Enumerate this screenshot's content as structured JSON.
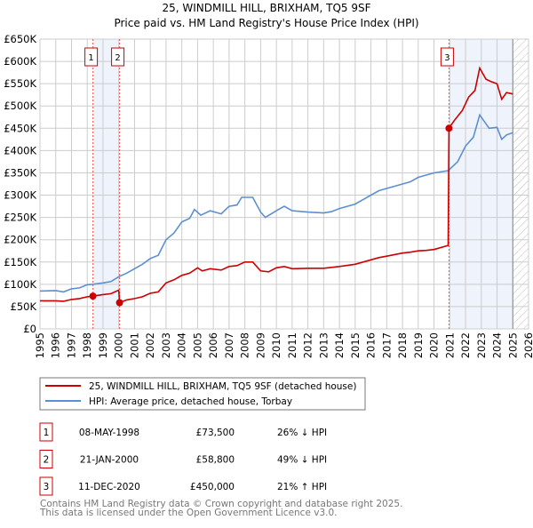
{
  "chart_data": {
    "type": "line",
    "title": "25, WINDMILL HILL, BRIXHAM, TQ5 9SF",
    "subtitle": "Price paid vs. HM Land Registry's House Price Index (HPI)",
    "xlim": [
      1995,
      2026
    ],
    "ylim": [
      0,
      650000
    ],
    "x_ticks": [
      "1995",
      "1996",
      "1997",
      "1998",
      "1999",
      "2000",
      "2001",
      "2002",
      "2003",
      "2004",
      "2005",
      "2006",
      "2007",
      "2008",
      "2009",
      "2010",
      "2011",
      "2012",
      "2013",
      "2014",
      "2015",
      "2016",
      "2017",
      "2018",
      "2019",
      "2020",
      "2021",
      "2022",
      "2023",
      "2024",
      "2025",
      "2026"
    ],
    "y_ticks": [
      {
        "value": 0,
        "label": "£0"
      },
      {
        "value": 50000,
        "label": "£50K"
      },
      {
        "value": 100000,
        "label": "£100K"
      },
      {
        "value": 150000,
        "label": "£150K"
      },
      {
        "value": 200000,
        "label": "£200K"
      },
      {
        "value": 250000,
        "label": "£250K"
      },
      {
        "value": 300000,
        "label": "£300K"
      },
      {
        "value": 350000,
        "label": "£350K"
      },
      {
        "value": 400000,
        "label": "£400K"
      },
      {
        "value": 450000,
        "label": "£450K"
      },
      {
        "value": 500000,
        "label": "£500K"
      },
      {
        "value": 550000,
        "label": "£550K"
      },
      {
        "value": 600000,
        "label": "£600K"
      },
      {
        "value": 650000,
        "label": "£650K"
      }
    ],
    "grid": true,
    "series": [
      {
        "name": "25, WINDMILL HILL, BRIXHAM, TQ5 9SF (detached house)",
        "color": "#cc0000",
        "x": [
          1995,
          1996,
          1996.5,
          1997,
          1997.5,
          1998,
          1998.36,
          1999,
          1999.5,
          2000.0,
          2000.05,
          2000.5,
          2001,
          2001.5,
          2002,
          2002.5,
          2003,
          2003.5,
          2004,
          2004.5,
          2005,
          2005.3,
          2005.8,
          2006.5,
          2007,
          2007.5,
          2008,
          2008.5,
          2009,
          2009.5,
          2010,
          2010.5,
          2011,
          2012,
          2013,
          2014,
          2015,
          2015.5,
          2016,
          2016.5,
          2017,
          2018,
          2018.5,
          2019,
          2019.5,
          2020,
          2020.9,
          2020.95,
          2021.3,
          2021.8,
          2022.2,
          2022.6,
          2022.9,
          2023.3,
          2023.6,
          2024,
          2024.3,
          2024.6,
          2025
        ],
        "values": [
          63000,
          63000,
          62000,
          66000,
          68000,
          72000,
          73500,
          77000,
          79000,
          87000,
          58800,
          65000,
          68000,
          72000,
          80000,
          83000,
          103000,
          110000,
          120000,
          125000,
          137000,
          130000,
          135000,
          132000,
          140000,
          142000,
          150000,
          150000,
          130000,
          128000,
          137000,
          140000,
          135000,
          136000,
          136000,
          140000,
          145000,
          150000,
          155000,
          160000,
          163000,
          170000,
          172000,
          175000,
          176000,
          178000,
          187000,
          450000,
          468000,
          490000,
          520000,
          535000,
          585000,
          560000,
          555000,
          550000,
          515000,
          530000,
          527000
        ]
      },
      {
        "name": "HPI: Average price, detached house, Torbay",
        "color": "#5b8fd0",
        "x": [
          1995,
          1996,
          1996.5,
          1997,
          1997.5,
          1998,
          1998.36,
          1999,
          1999.5,
          2000,
          2000.5,
          2001,
          2001.5,
          2002,
          2002.5,
          2003,
          2003.5,
          2004,
          2004.5,
          2004.8,
          2005.2,
          2005.8,
          2006.5,
          2007,
          2007.5,
          2007.8,
          2008.5,
          2009,
          2009.3,
          2010,
          2010.5,
          2011,
          2012,
          2013,
          2013.5,
          2014,
          2015,
          2015.5,
          2016,
          2016.5,
          2017,
          2018,
          2018.5,
          2019,
          2019.5,
          2020,
          2020.9,
          2021.5,
          2022,
          2022.5,
          2022.9,
          2023.5,
          2024,
          2024.3,
          2024.6,
          2025
        ],
        "values": [
          85000,
          86000,
          83000,
          90000,
          92000,
          99000,
          100000,
          103000,
          106000,
          117000,
          125000,
          135000,
          145000,
          158000,
          165000,
          200000,
          215000,
          240000,
          248000,
          268000,
          255000,
          265000,
          258000,
          275000,
          278000,
          295000,
          295000,
          262000,
          250000,
          265000,
          275000,
          265000,
          262000,
          260000,
          263000,
          270000,
          280000,
          290000,
          300000,
          310000,
          315000,
          325000,
          330000,
          340000,
          345000,
          350000,
          355000,
          375000,
          410000,
          430000,
          480000,
          450000,
          452000,
          425000,
          435000,
          440000
        ]
      }
    ],
    "sales": [
      {
        "id": "1",
        "x": 1998.36,
        "value": 73500
      },
      {
        "id": "2",
        "x": 2000.05,
        "value": 58800
      },
      {
        "id": "3",
        "x": 2020.95,
        "value": 450000
      }
    ],
    "shaded_ranges": [
      [
        1998.36,
        2000.05
      ],
      [
        2020.95,
        2025.0
      ]
    ],
    "hatched_from": 2025.0,
    "legend_placement": "below"
  },
  "table": [
    {
      "num": "1",
      "date": "08-MAY-1998",
      "price": "£73,500",
      "hpi": "26% ↓ HPI"
    },
    {
      "num": "2",
      "date": "21-JAN-2000",
      "price": "£58,800",
      "hpi": "49% ↓ HPI"
    },
    {
      "num": "3",
      "date": "11-DEC-2020",
      "price": "£450,000",
      "hpi": "21% ↑ HPI"
    }
  ],
  "footer": {
    "line1": "Contains HM Land Registry data © Crown copyright and database right 2025.",
    "line2": "This data is licensed under the Open Government Licence v3.0."
  }
}
